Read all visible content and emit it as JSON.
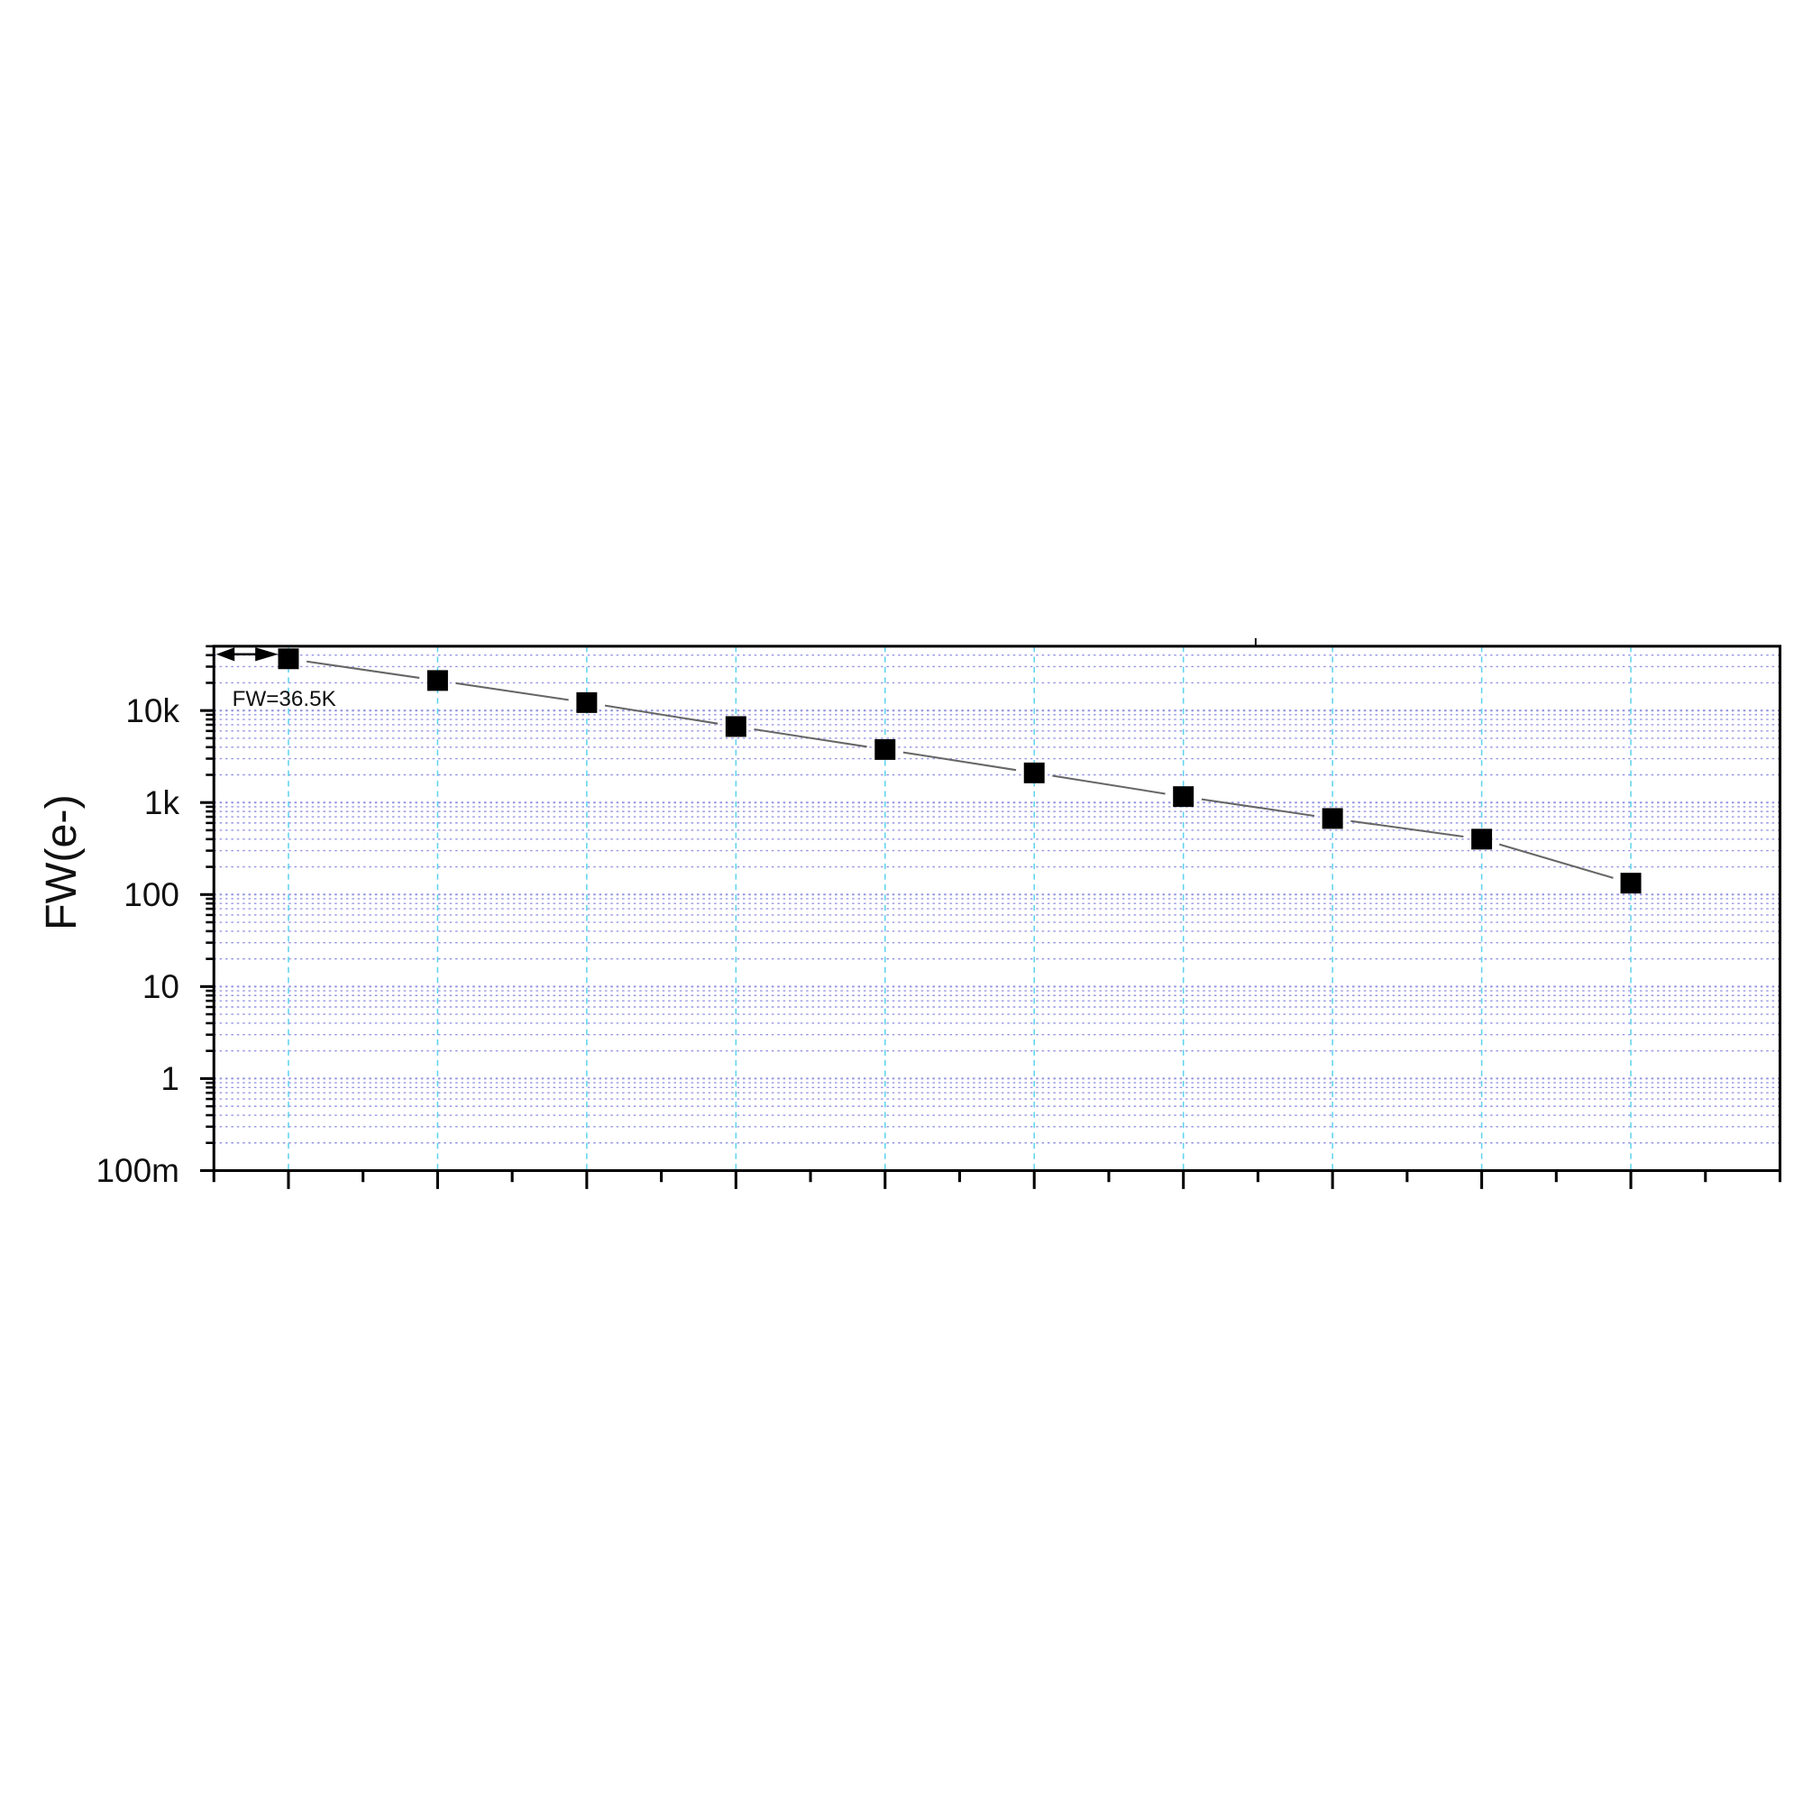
{
  "chart_data": {
    "type": "scatter",
    "title": "",
    "xlabel": "",
    "ylabel": "FW(e-)",
    "yscale": "log",
    "ylim": [
      0.1,
      50000
    ],
    "xlim": [
      0.5,
      11
    ],
    "y_tick_labels": [
      {
        "value": 0.1,
        "label": "100m"
      },
      {
        "value": 1,
        "label": "1"
      },
      {
        "value": 10,
        "label": "10"
      },
      {
        "value": 100,
        "label": "100"
      },
      {
        "value": 1000,
        "label": "1k"
      },
      {
        "value": 10000,
        "label": "10k"
      }
    ],
    "x_tick_labels": [],
    "grid": true,
    "marker": "square",
    "series": [
      {
        "x": [
          1,
          2,
          3,
          4,
          5,
          6,
          7,
          8,
          9,
          10
        ],
        "values": [
          36500,
          21200,
          12200,
          6700,
          3770,
          2100,
          1160,
          671,
          400,
          133
        ]
      }
    ],
    "annotation": {
      "text": "FW=36.5K",
      "arrow": "double-headed"
    },
    "colors": {
      "marker": "#000000",
      "line": "#666666",
      "grid_h": "#7b7bdc",
      "grid_v": "#5fd3ee",
      "axis": "#000000"
    }
  }
}
